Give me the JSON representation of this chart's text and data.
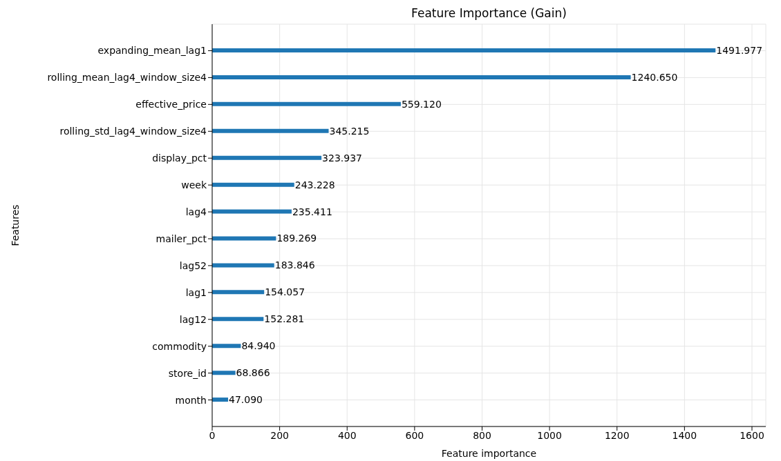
{
  "chart_data": {
    "type": "bar",
    "orientation": "horizontal",
    "title": "Feature Importance (Gain)",
    "xlabel": "Feature importance",
    "ylabel": "Features",
    "categories": [
      "expanding_mean_lag1",
      "rolling_mean_lag4_window_size4",
      "effective_price",
      "rolling_std_lag4_window_size4",
      "display_pct",
      "week",
      "lag4",
      "mailer_pct",
      "lag52",
      "lag1",
      "lag12",
      "commodity",
      "store_id",
      "month"
    ],
    "values": [
      1491.977,
      1240.65,
      559.12,
      345.215,
      323.937,
      243.228,
      235.411,
      189.269,
      183.846,
      154.057,
      152.281,
      84.94,
      68.866,
      47.09
    ],
    "value_labels": [
      "1491.977",
      "1240.650",
      "559.120",
      "345.215",
      "323.937",
      "243.228",
      "235.411",
      "189.269",
      "183.846",
      "154.057",
      "152.281",
      "84.940",
      "68.866",
      "47.090"
    ],
    "color": "#1f77b4",
    "xlim": [
      0,
      1641
    ],
    "xticks": [
      0,
      200,
      400,
      600,
      800,
      1000,
      1200,
      1400,
      1600
    ],
    "grid": true
  }
}
